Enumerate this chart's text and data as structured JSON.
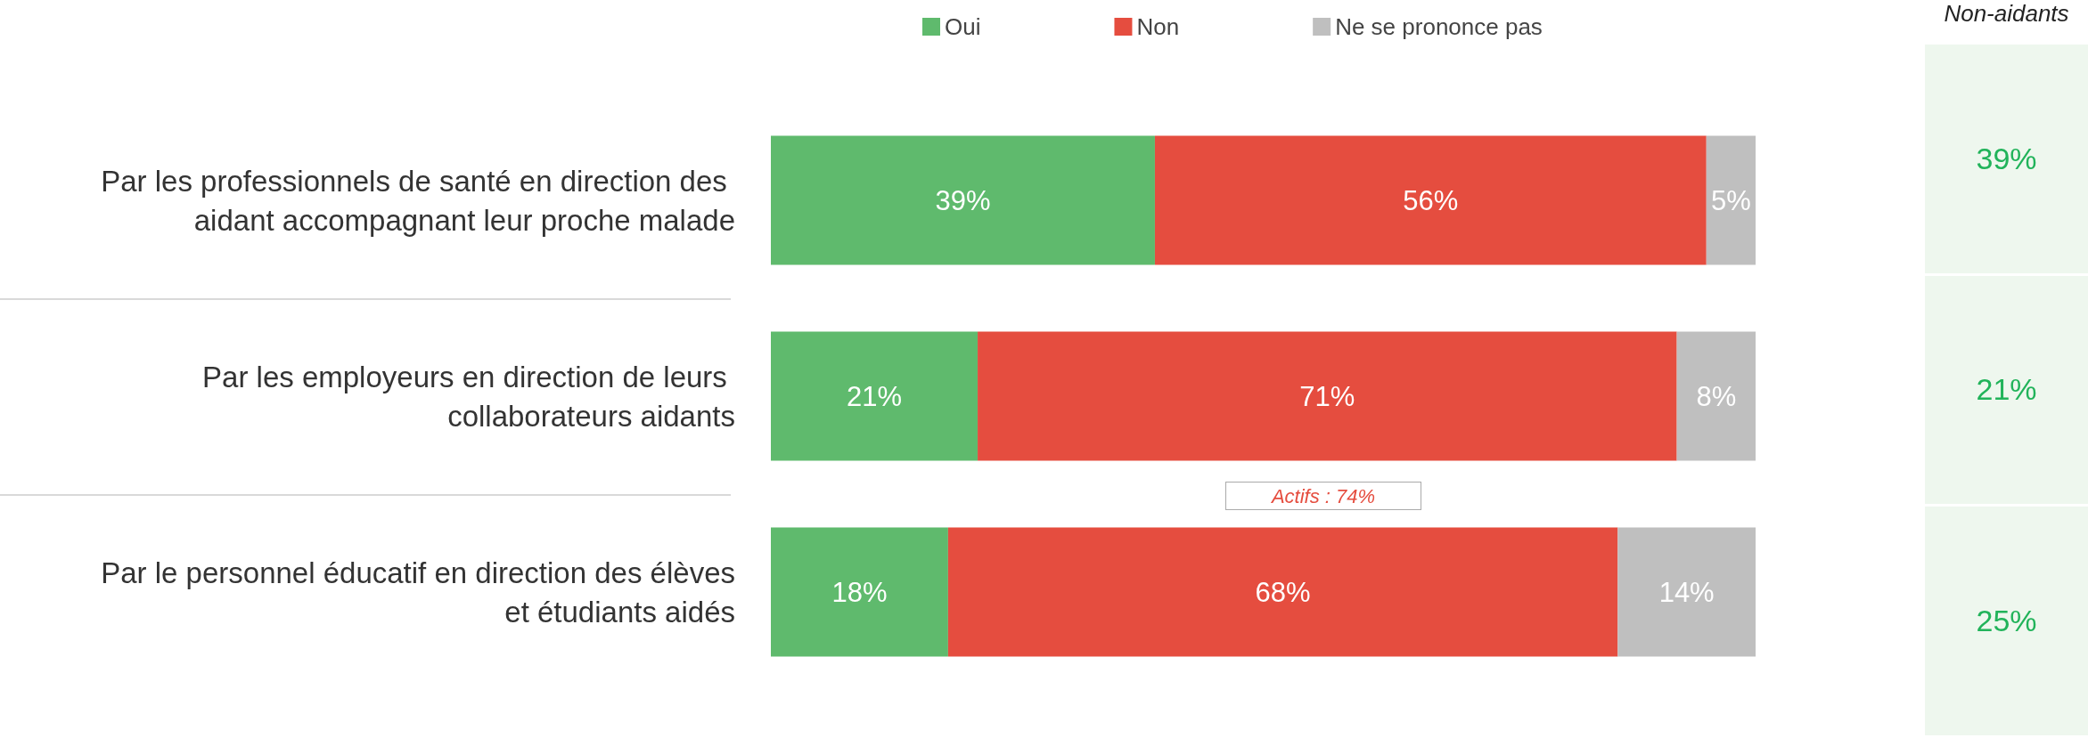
{
  "chart_data": [
    {
      "type": "bar",
      "orientation": "horizontal",
      "stacked": true,
      "legend": "top",
      "tick_labels": "y",
      "categories": [
        "Par les professionnels de santé en direction des aidant accompagnant leur proche malade",
        "Par les employeurs en direction de leurs collaborateurs aidants",
        "Par le personnel éducatif en direction des élèves et étudiants aidés"
      ],
      "series": [
        {
          "name": "Oui",
          "color": "#5fba6d",
          "values": [
            39,
            21,
            18
          ],
          "value_labels": [
            "39%",
            "21%",
            "18%"
          ]
        },
        {
          "name": "Non",
          "color": "#e54d3f",
          "values": [
            56,
            71,
            68
          ],
          "value_labels": [
            "56%",
            "71%",
            "68%"
          ]
        },
        {
          "name": "Ne se prononce pas",
          "color": "#bfbfbf",
          "values": [
            5,
            8,
            14
          ],
          "value_labels": [
            "5%",
            "8%",
            "14%"
          ]
        }
      ],
      "annotations": [
        "Actifs : 74%"
      ]
    },
    {
      "type": "other",
      "title": "Non-aidants",
      "annotations": [
        "39%",
        "21%",
        "25%"
      ]
    }
  ]
}
